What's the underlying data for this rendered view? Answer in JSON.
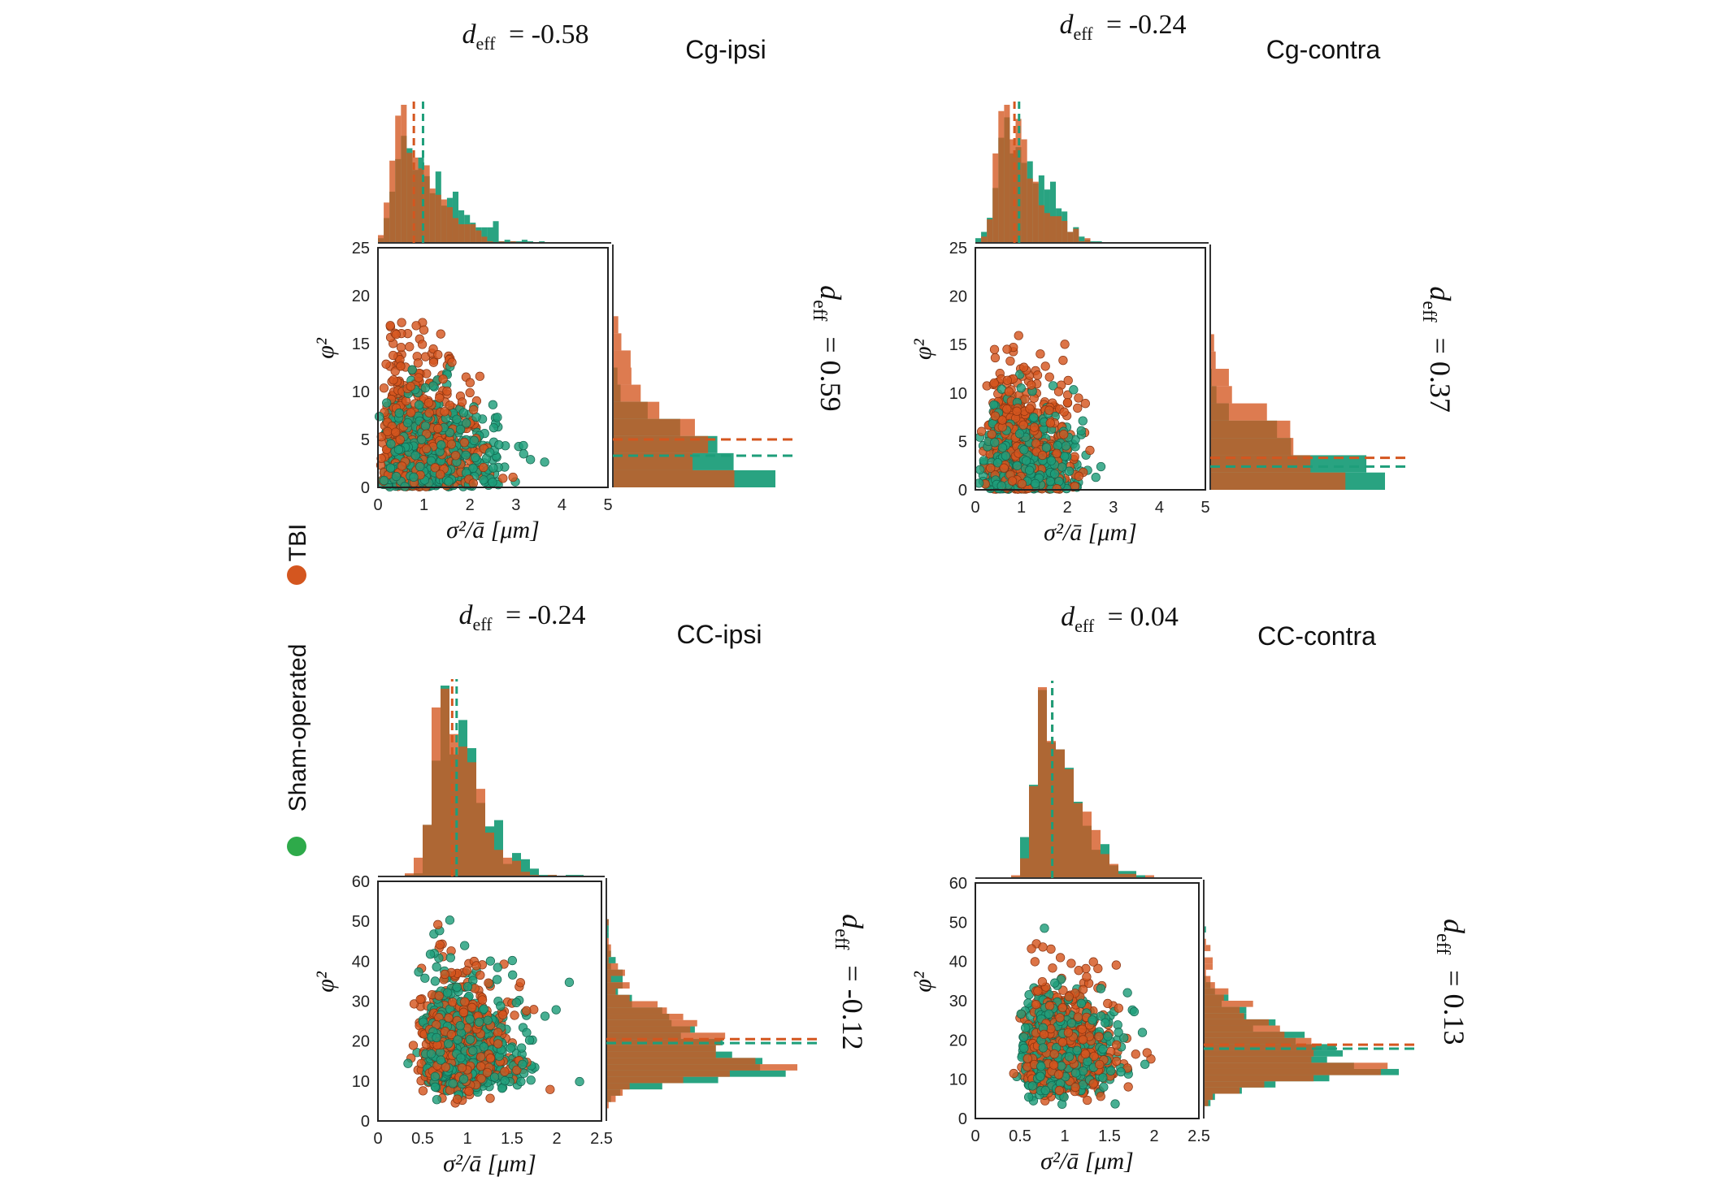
{
  "colors": {
    "tbi": "#D4561F",
    "sham": "#1E9E7A",
    "sham_legend": "#2EAA4A"
  },
  "legend": [
    {
      "label": "TBI",
      "color": "#D4561F"
    },
    {
      "label": "Sham-operated",
      "color": "#2EAA4A"
    }
  ],
  "chart_data": [
    {
      "type": "scatter",
      "title": "Cg-ipsi",
      "xlabel": "σ²/ā [μm]",
      "ylabel": "φ²",
      "xlim": [
        0,
        5
      ],
      "ylim": [
        0,
        25
      ],
      "xticks": [
        "0",
        "1",
        "2",
        "3",
        "4",
        "5"
      ],
      "yticks": [
        "0",
        "5",
        "10",
        "15",
        "20",
        "25"
      ],
      "top_d": {
        "sym": "d",
        "sub": "eff",
        "value": "= -0.58"
      },
      "side_d": {
        "sym": "d",
        "sub": "eff",
        "value": "= 0.59"
      },
      "series": [
        {
          "name": "TBI",
          "x_mean": 0.78,
          "y_mean": 5.0,
          "x_dist": {
            "mode": 0.6,
            "sd": 0.7
          },
          "y_dist": {
            "mode": 1.5,
            "sd": 6
          }
        },
        {
          "name": "Sham-operated",
          "x_mean": 0.98,
          "y_mean": 3.3,
          "x_dist": {
            "mode": 0.7,
            "sd": 0.9
          },
          "y_dist": {
            "mode": 1.0,
            "sd": 4
          }
        }
      ]
    },
    {
      "type": "scatter",
      "title": "Cg-contra",
      "xlabel": "σ²/ā [μm]",
      "ylabel": "φ²",
      "xlim": [
        0,
        5
      ],
      "ylim": [
        0,
        25
      ],
      "xticks": [
        "0",
        "1",
        "2",
        "3",
        "4",
        "5"
      ],
      "yticks": [
        "0",
        "5",
        "10",
        "15",
        "20",
        "25"
      ],
      "top_d": {
        "sym": "d",
        "sub": "eff",
        "value": "= -0.24"
      },
      "side_d": {
        "sym": "d",
        "sub": "eff",
        "value": "= 0.37"
      },
      "series": [
        {
          "name": "TBI",
          "x_mean": 0.85,
          "y_mean": 3.3,
          "x_dist": {
            "mode": 0.7,
            "sd": 0.6
          },
          "y_dist": {
            "mode": 1.0,
            "sd": 5
          }
        },
        {
          "name": "Sham-operated",
          "x_mean": 0.95,
          "y_mean": 2.4,
          "x_dist": {
            "mode": 0.75,
            "sd": 0.7
          },
          "y_dist": {
            "mode": 0.8,
            "sd": 3.5
          }
        }
      ]
    },
    {
      "type": "scatter",
      "title": "CC-ipsi",
      "xlabel": "σ²/ā [μm]",
      "ylabel": "φ²",
      "xlim": [
        0,
        2.5
      ],
      "ylim": [
        0,
        60
      ],
      "xticks": [
        "0",
        "0.5",
        "1",
        "1.5",
        "2",
        "2.5"
      ],
      "yticks": [
        "0",
        "10",
        "20",
        "30",
        "40",
        "50",
        "60"
      ],
      "top_d": {
        "sym": "d",
        "sub": "eff",
        "value": "= -0.24"
      },
      "side_d": {
        "sym": "d",
        "sub": "eff",
        "value": "= -0.12"
      },
      "series": [
        {
          "name": "TBI",
          "x_mean": 0.83,
          "y_mean": 20.5,
          "x_dist": {
            "mode": 0.75,
            "sd": 0.35
          },
          "y_dist": {
            "mode": 15,
            "sd": 10
          }
        },
        {
          "name": "Sham-operated",
          "x_mean": 0.88,
          "y_mean": 19.5,
          "x_dist": {
            "mode": 0.8,
            "sd": 0.4
          },
          "y_dist": {
            "mode": 14,
            "sd": 10
          }
        }
      ]
    },
    {
      "type": "scatter",
      "title": "CC-contra",
      "xlabel": "σ²/ā [μm]",
      "ylabel": "φ²",
      "xlim": [
        0,
        2.5
      ],
      "ylim": [
        0,
        60
      ],
      "xticks": [
        "0",
        "0.5",
        "1",
        "1.5",
        "2",
        "2.5"
      ],
      "yticks": [
        "0",
        "10",
        "20",
        "30",
        "40",
        "50",
        "60"
      ],
      "top_d": {
        "sym": "d",
        "sub": "eff",
        "value": "= 0.04"
      },
      "side_d": {
        "sym": "d",
        "sub": "eff",
        "value": "= 0.13"
      },
      "series": [
        {
          "name": "TBI",
          "x_mean": 0.86,
          "y_mean": 18.8,
          "x_dist": {
            "mode": 0.8,
            "sd": 0.35
          },
          "y_dist": {
            "mode": 14,
            "sd": 10
          }
        },
        {
          "name": "Sham-operated",
          "x_mean": 0.86,
          "y_mean": 17.8,
          "x_dist": {
            "mode": 0.8,
            "sd": 0.35
          },
          "y_dist": {
            "mode": 13,
            "sd": 9
          }
        }
      ]
    }
  ]
}
